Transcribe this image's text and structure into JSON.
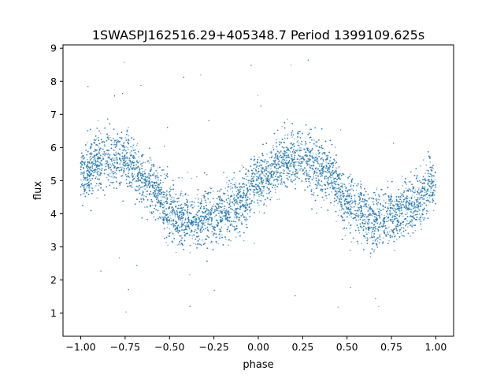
{
  "chart_data": {
    "type": "scatter",
    "title": "1SWASPJ162516.29+405348.7 Period 1399109.625s",
    "xlabel": "phase",
    "ylabel": "flux",
    "xlim": [
      -1.1,
      1.1
    ],
    "ylim": [
      0.3,
      9.1
    ],
    "x_ticks": [
      -1.0,
      -0.75,
      -0.5,
      -0.25,
      0.0,
      0.25,
      0.5,
      0.75,
      1.0
    ],
    "x_tick_labels": [
      "−1.00",
      "−0.75",
      "−0.50",
      "−0.25",
      "0.00",
      "0.25",
      "0.50",
      "0.75",
      "1.00"
    ],
    "y_ticks": [
      1,
      2,
      3,
      4,
      5,
      6,
      7,
      8,
      9
    ],
    "y_tick_labels": [
      "1",
      "2",
      "3",
      "4",
      "5",
      "6",
      "7",
      "8",
      "9"
    ],
    "grid": false,
    "legend": "none",
    "marker_color": "#1f77b4",
    "series": [
      {
        "x_range": [
          -1.0,
          1.0
        ],
        "trend": {
          "phase": [
            -1.0,
            -0.85,
            -0.75,
            -0.6,
            -0.5,
            -0.35,
            -0.25,
            -0.1,
            0.0,
            0.15,
            0.25,
            0.4,
            0.5,
            0.65,
            0.75,
            0.9,
            1.0
          ],
          "flux": [
            5.2,
            5.7,
            5.6,
            4.9,
            4.0,
            3.8,
            3.9,
            4.3,
            5.0,
            5.6,
            5.7,
            5.2,
            4.3,
            3.8,
            3.9,
            4.4,
            5.0
          ]
        },
        "scatter_band": [
          3.9,
          6.3
        ],
        "outlier_range": [
          0.6,
          8.7
        ]
      }
    ]
  }
}
